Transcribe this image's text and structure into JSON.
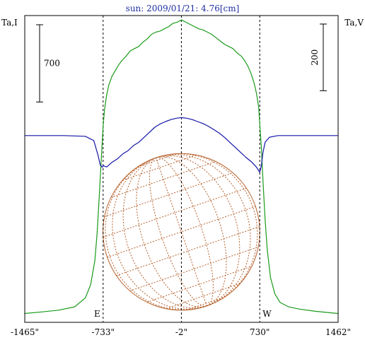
{
  "colors": {
    "background": "#ffffff",
    "title": "#1f2fa0",
    "frame": "#000000",
    "intensity": "#1a9a1a",
    "polarization": "#1515a8",
    "grid": "#b5612c"
  },
  "chart_data": {
    "type": "line",
    "title": "sun: 2009/01/21: 4.76[cm]",
    "y_left_label": "Ta,I",
    "y_right_label": "Ta,V",
    "x_ticks": [
      "-1465\"",
      "-733\"",
      "-2\"",
      "730\"",
      "1462\""
    ],
    "x_tick_values": [
      -1465,
      -733,
      -2,
      730,
      1462
    ],
    "xlim": [
      -1465,
      1462
    ],
    "limb_markers": [
      {
        "label": "E",
        "x": -733
      },
      {
        "label": "W",
        "x": 730
      }
    ],
    "scale_bars": [
      {
        "label": "700",
        "axis": "left",
        "value": 700
      },
      {
        "label": "200",
        "axis": "right",
        "value": 200
      }
    ],
    "ylim_left": [
      -80,
      2700
    ],
    "ylim_right": [
      -560,
      360
    ],
    "series": [
      {
        "axis": "left",
        "color": "intensity",
        "x": [
          -1465,
          -1300,
          -1150,
          -1000,
          -900,
          -850,
          -810,
          -790,
          -770,
          -750,
          -733,
          -720,
          -700,
          -680,
          -650,
          -620,
          -590,
          -560,
          -520,
          -480,
          -440,
          -400,
          -360,
          -320,
          -280,
          -240,
          -200,
          -160,
          -120,
          -80,
          -40,
          -2,
          40,
          80,
          120,
          160,
          200,
          240,
          280,
          320,
          360,
          400,
          440,
          480,
          520,
          560,
          590,
          620,
          650,
          680,
          700,
          720,
          730,
          745,
          760,
          780,
          800,
          830,
          870,
          920,
          1000,
          1100,
          1250,
          1350,
          1462
        ],
        "values": [
          0,
          15,
          30,
          60,
          140,
          260,
          480,
          720,
          1050,
          1400,
          1700,
          1850,
          1980,
          2070,
          2150,
          2200,
          2250,
          2290,
          2330,
          2380,
          2400,
          2420,
          2460,
          2490,
          2530,
          2550,
          2560,
          2580,
          2600,
          2630,
          2640,
          2660,
          2640,
          2620,
          2600,
          2580,
          2570,
          2550,
          2530,
          2500,
          2470,
          2440,
          2420,
          2400,
          2360,
          2330,
          2290,
          2240,
          2170,
          2080,
          1990,
          1870,
          1720,
          1500,
          1200,
          850,
          580,
          330,
          180,
          100,
          60,
          40,
          20,
          10,
          0
        ]
      },
      {
        "axis": "right",
        "color": "polarization",
        "x": [
          -1465,
          -1300,
          -1100,
          -900,
          -820,
          -780,
          -760,
          -740,
          -733,
          -700,
          -650,
          -600,
          -550,
          -500,
          -450,
          -400,
          -350,
          -300,
          -250,
          -200,
          -150,
          -100,
          -50,
          -2,
          50,
          100,
          150,
          200,
          250,
          300,
          350,
          400,
          450,
          500,
          550,
          600,
          650,
          700,
          720,
          730,
          745,
          760,
          780,
          820,
          900,
          1100,
          1300,
          1462
        ],
        "values": [
          0,
          0,
          0,
          -2,
          -15,
          -60,
          -88,
          -95,
          -90,
          -94,
          -80,
          -70,
          -55,
          -45,
          -30,
          -20,
          -5,
          10,
          25,
          35,
          42,
          48,
          52,
          54,
          52,
          48,
          42,
          36,
          28,
          18,
          8,
          -5,
          -20,
          -35,
          -50,
          -65,
          -78,
          -95,
          -105,
          -110,
          -90,
          -50,
          -20,
          -5,
          0,
          0,
          0,
          0
        ]
      }
    ],
    "solar_disk": {
      "center_x": -2,
      "radius": 732,
      "center_y_left": 740
    },
    "grid": false,
    "legend": "none"
  }
}
